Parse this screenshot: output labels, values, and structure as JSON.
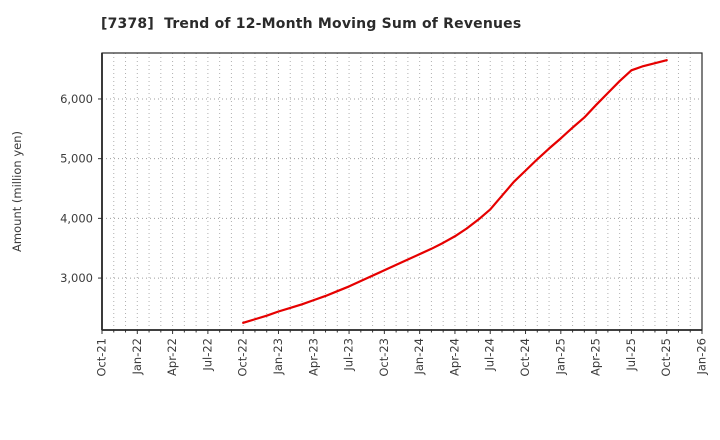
{
  "chart_data": {
    "type": "line",
    "title": "[7378]  Trend of 12-Month Moving Sum of Revenues",
    "ylabel": "Amount (million yen)",
    "x_axis": {
      "tick_labels": [
        "Oct-21",
        "Jan-22",
        "Apr-22",
        "Jul-22",
        "Oct-22",
        "Jan-23",
        "Apr-23",
        "Jul-23",
        "Oct-23",
        "Jan-24",
        "Apr-24",
        "Jul-24",
        "Oct-24",
        "Jan-25",
        "Apr-25",
        "Jul-25",
        "Oct-25",
        "Jan-26"
      ],
      "months_between_labeled_ticks": 3,
      "first_month": "Oct-21",
      "last_month": "Jan-26",
      "total_month_slots": 51
    },
    "y_axis": {
      "tick_values": [
        3000,
        4000,
        5000,
        6000
      ],
      "tick_labels": [
        "3,000",
        "4,000",
        "5,000",
        "6,000"
      ],
      "ylim": [
        2130,
        6770
      ]
    },
    "grid": {
      "vertical": "dotted line at every month",
      "horizontal": "dotted line at every y tick",
      "color": "#b0b0b0"
    },
    "legend": "none",
    "series": [
      {
        "name": "12-month moving sum of revenues (million yen)",
        "color": "#e60000",
        "line_width": 2.2,
        "start_month_index": 12,
        "x_labels": [
          "Oct-22",
          "Nov-22",
          "Dec-22",
          "Jan-23",
          "Feb-23",
          "Mar-23",
          "Apr-23",
          "May-23",
          "Jun-23",
          "Jul-23",
          "Aug-23",
          "Sep-23",
          "Oct-23",
          "Nov-23",
          "Dec-23",
          "Jan-24",
          "Feb-24",
          "Mar-24",
          "Apr-24",
          "May-24",
          "Jun-24",
          "Jul-24",
          "Aug-24",
          "Sep-24",
          "Oct-24",
          "Nov-24",
          "Dec-24",
          "Jan-25",
          "Feb-25",
          "Mar-25",
          "Apr-25",
          "May-25",
          "Jun-25",
          "Jul-25",
          "Aug-25",
          "Sep-25",
          "Oct-25"
        ],
        "values": [
          2250,
          2310,
          2370,
          2440,
          2500,
          2560,
          2630,
          2700,
          2780,
          2860,
          2950,
          3040,
          3130,
          3220,
          3310,
          3400,
          3490,
          3590,
          3700,
          3830,
          3980,
          4150,
          4380,
          4610,
          4800,
          4990,
          5170,
          5340,
          5520,
          5690,
          5900,
          6100,
          6300,
          6480,
          6550,
          6600,
          6650
        ]
      }
    ]
  }
}
